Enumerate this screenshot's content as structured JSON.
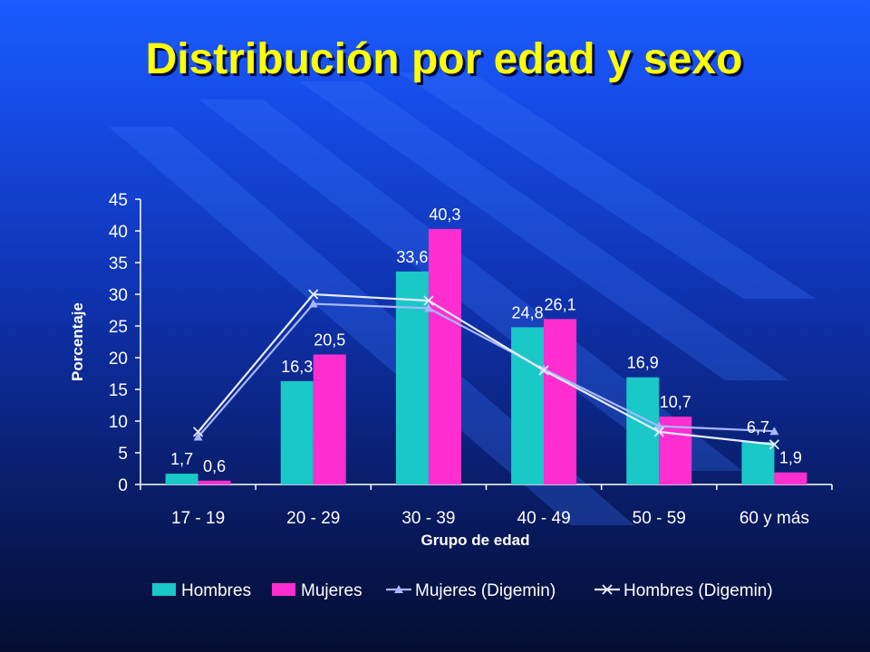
{
  "slide": {
    "title": "Distribución por edad y sexo"
  },
  "colors": {
    "hombres": "#1ac8c8",
    "mujeres": "#ff2ed0",
    "mujeres_digemin": "#a8b8ff",
    "hombres_digemin": "#e8ecff",
    "title": "#ffff00"
  },
  "chart_data": {
    "type": "bar",
    "categories": [
      "17 - 19",
      "20 - 29",
      "30 - 39",
      "40 - 49",
      "50 - 59",
      "60 y más"
    ],
    "xlabel": "Grupo de edad",
    "ylabel": "Porcentaje",
    "ylim": [
      0,
      45
    ],
    "yticks": [
      0,
      5,
      10,
      15,
      20,
      25,
      30,
      35,
      40,
      45
    ],
    "grid": false,
    "legend": "bottom",
    "series": [
      {
        "name": "Hombres",
        "kind": "bar",
        "values": [
          1.7,
          16.3,
          33.6,
          24.8,
          16.9,
          6.7
        ],
        "labels": [
          "1,7",
          "16,3",
          "33,6",
          "24,8",
          "16,9",
          "6,7"
        ]
      },
      {
        "name": "Mujeres",
        "kind": "bar",
        "values": [
          0.6,
          20.5,
          40.3,
          26.1,
          10.7,
          1.9
        ],
        "labels": [
          "0,6",
          "20,5",
          "40,3",
          "26,1",
          "10,7",
          "1,9"
        ]
      },
      {
        "name": "Mujeres (Digemin)",
        "kind": "line",
        "marker": "triangle",
        "values": [
          7.5,
          28.5,
          27.8,
          18.2,
          9.2,
          8.4
        ]
      },
      {
        "name": "Hombres (Digemin)",
        "kind": "line",
        "marker": "x",
        "values": [
          8.3,
          30.0,
          29.0,
          18.0,
          8.3,
          6.3
        ]
      }
    ]
  }
}
